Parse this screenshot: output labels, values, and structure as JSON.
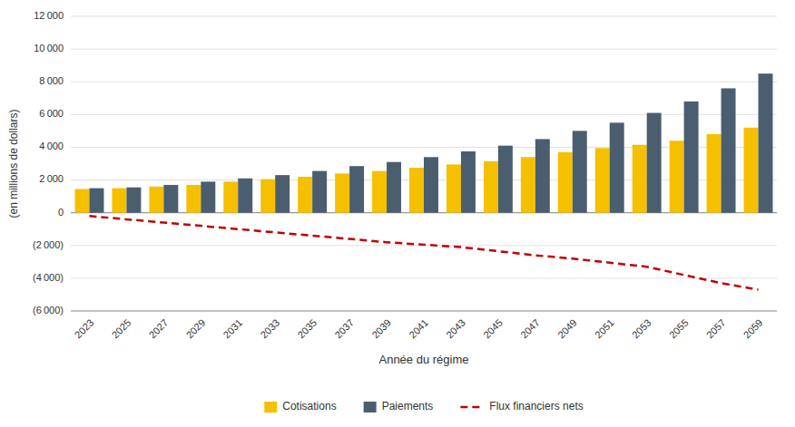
{
  "chart_data": {
    "type": "bar",
    "xlabel": "Année du régime",
    "ylabel": "(en millions de dollars)",
    "categories": [
      "2023",
      "2025",
      "2027",
      "2029",
      "2031",
      "2033",
      "2035",
      "2037",
      "2039",
      "2041",
      "2043",
      "2045",
      "2047",
      "2049",
      "2051",
      "2053",
      "2055",
      "2057",
      "2059"
    ],
    "series": [
      {
        "name": "Cotisations",
        "type": "bar",
        "color": "#F5C000",
        "values": [
          1450,
          1500,
          1600,
          1700,
          1900,
          2050,
          2200,
          2400,
          2550,
          2750,
          2950,
          3150,
          3400,
          3700,
          3950,
          4150,
          4400,
          4800,
          5200
        ]
      },
      {
        "name": "Paiements",
        "type": "bar",
        "color": "#4B5E6F",
        "values": [
          1500,
          1550,
          1700,
          1900,
          2100,
          2300,
          2550,
          2850,
          3100,
          3400,
          3750,
          4100,
          4500,
          5000,
          5500,
          6100,
          6800,
          7600,
          8500
        ]
      },
      {
        "name": "Flux financiers nets",
        "type": "line",
        "color": "#C00000",
        "line_style": "dashed",
        "values": [
          -200,
          -400,
          -600,
          -800,
          -1000,
          -1200,
          -1400,
          -1600,
          -1800,
          -1950,
          -2100,
          -2350,
          -2600,
          -2800,
          -3050,
          -3300,
          -3800,
          -4300,
          -4700
        ]
      }
    ],
    "ylim": [
      -6000,
      12000
    ],
    "yticks": [
      {
        "value": -6000,
        "label": "(6 000)"
      },
      {
        "value": -4000,
        "label": "(4 000)"
      },
      {
        "value": -2000,
        "label": "(2 000)"
      },
      0,
      {
        "value": 2000,
        "label": "2 000"
      },
      {
        "value": 4000,
        "label": "4 000"
      },
      {
        "value": 6000,
        "label": "6 000"
      },
      {
        "value": 8000,
        "label": "8 000"
      },
      {
        "value": 10000,
        "label": "10 000"
      },
      {
        "value": 12000,
        "label": "12 000"
      }
    ],
    "grid": true,
    "legend": "bottom"
  }
}
